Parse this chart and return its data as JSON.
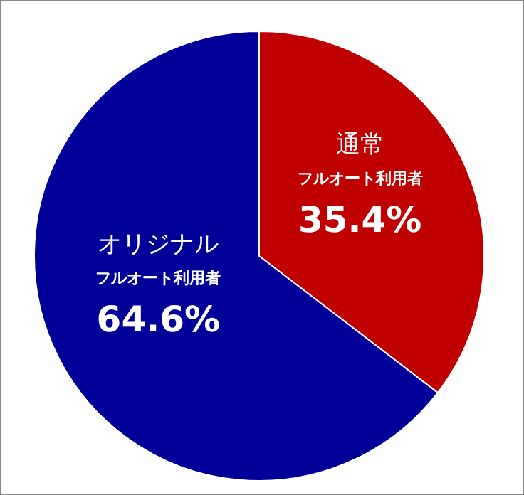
{
  "chart_data": {
    "type": "pie",
    "categories": [
      "通常",
      "オリジナル"
    ],
    "values": [
      35.4,
      64.6
    ],
    "value_labels": [
      "35.4%",
      "64.6%"
    ],
    "annotations": [
      "フルオート利用者",
      "フルオート利用者"
    ],
    "colors": [
      "#c00000",
      "#000099"
    ]
  }
}
